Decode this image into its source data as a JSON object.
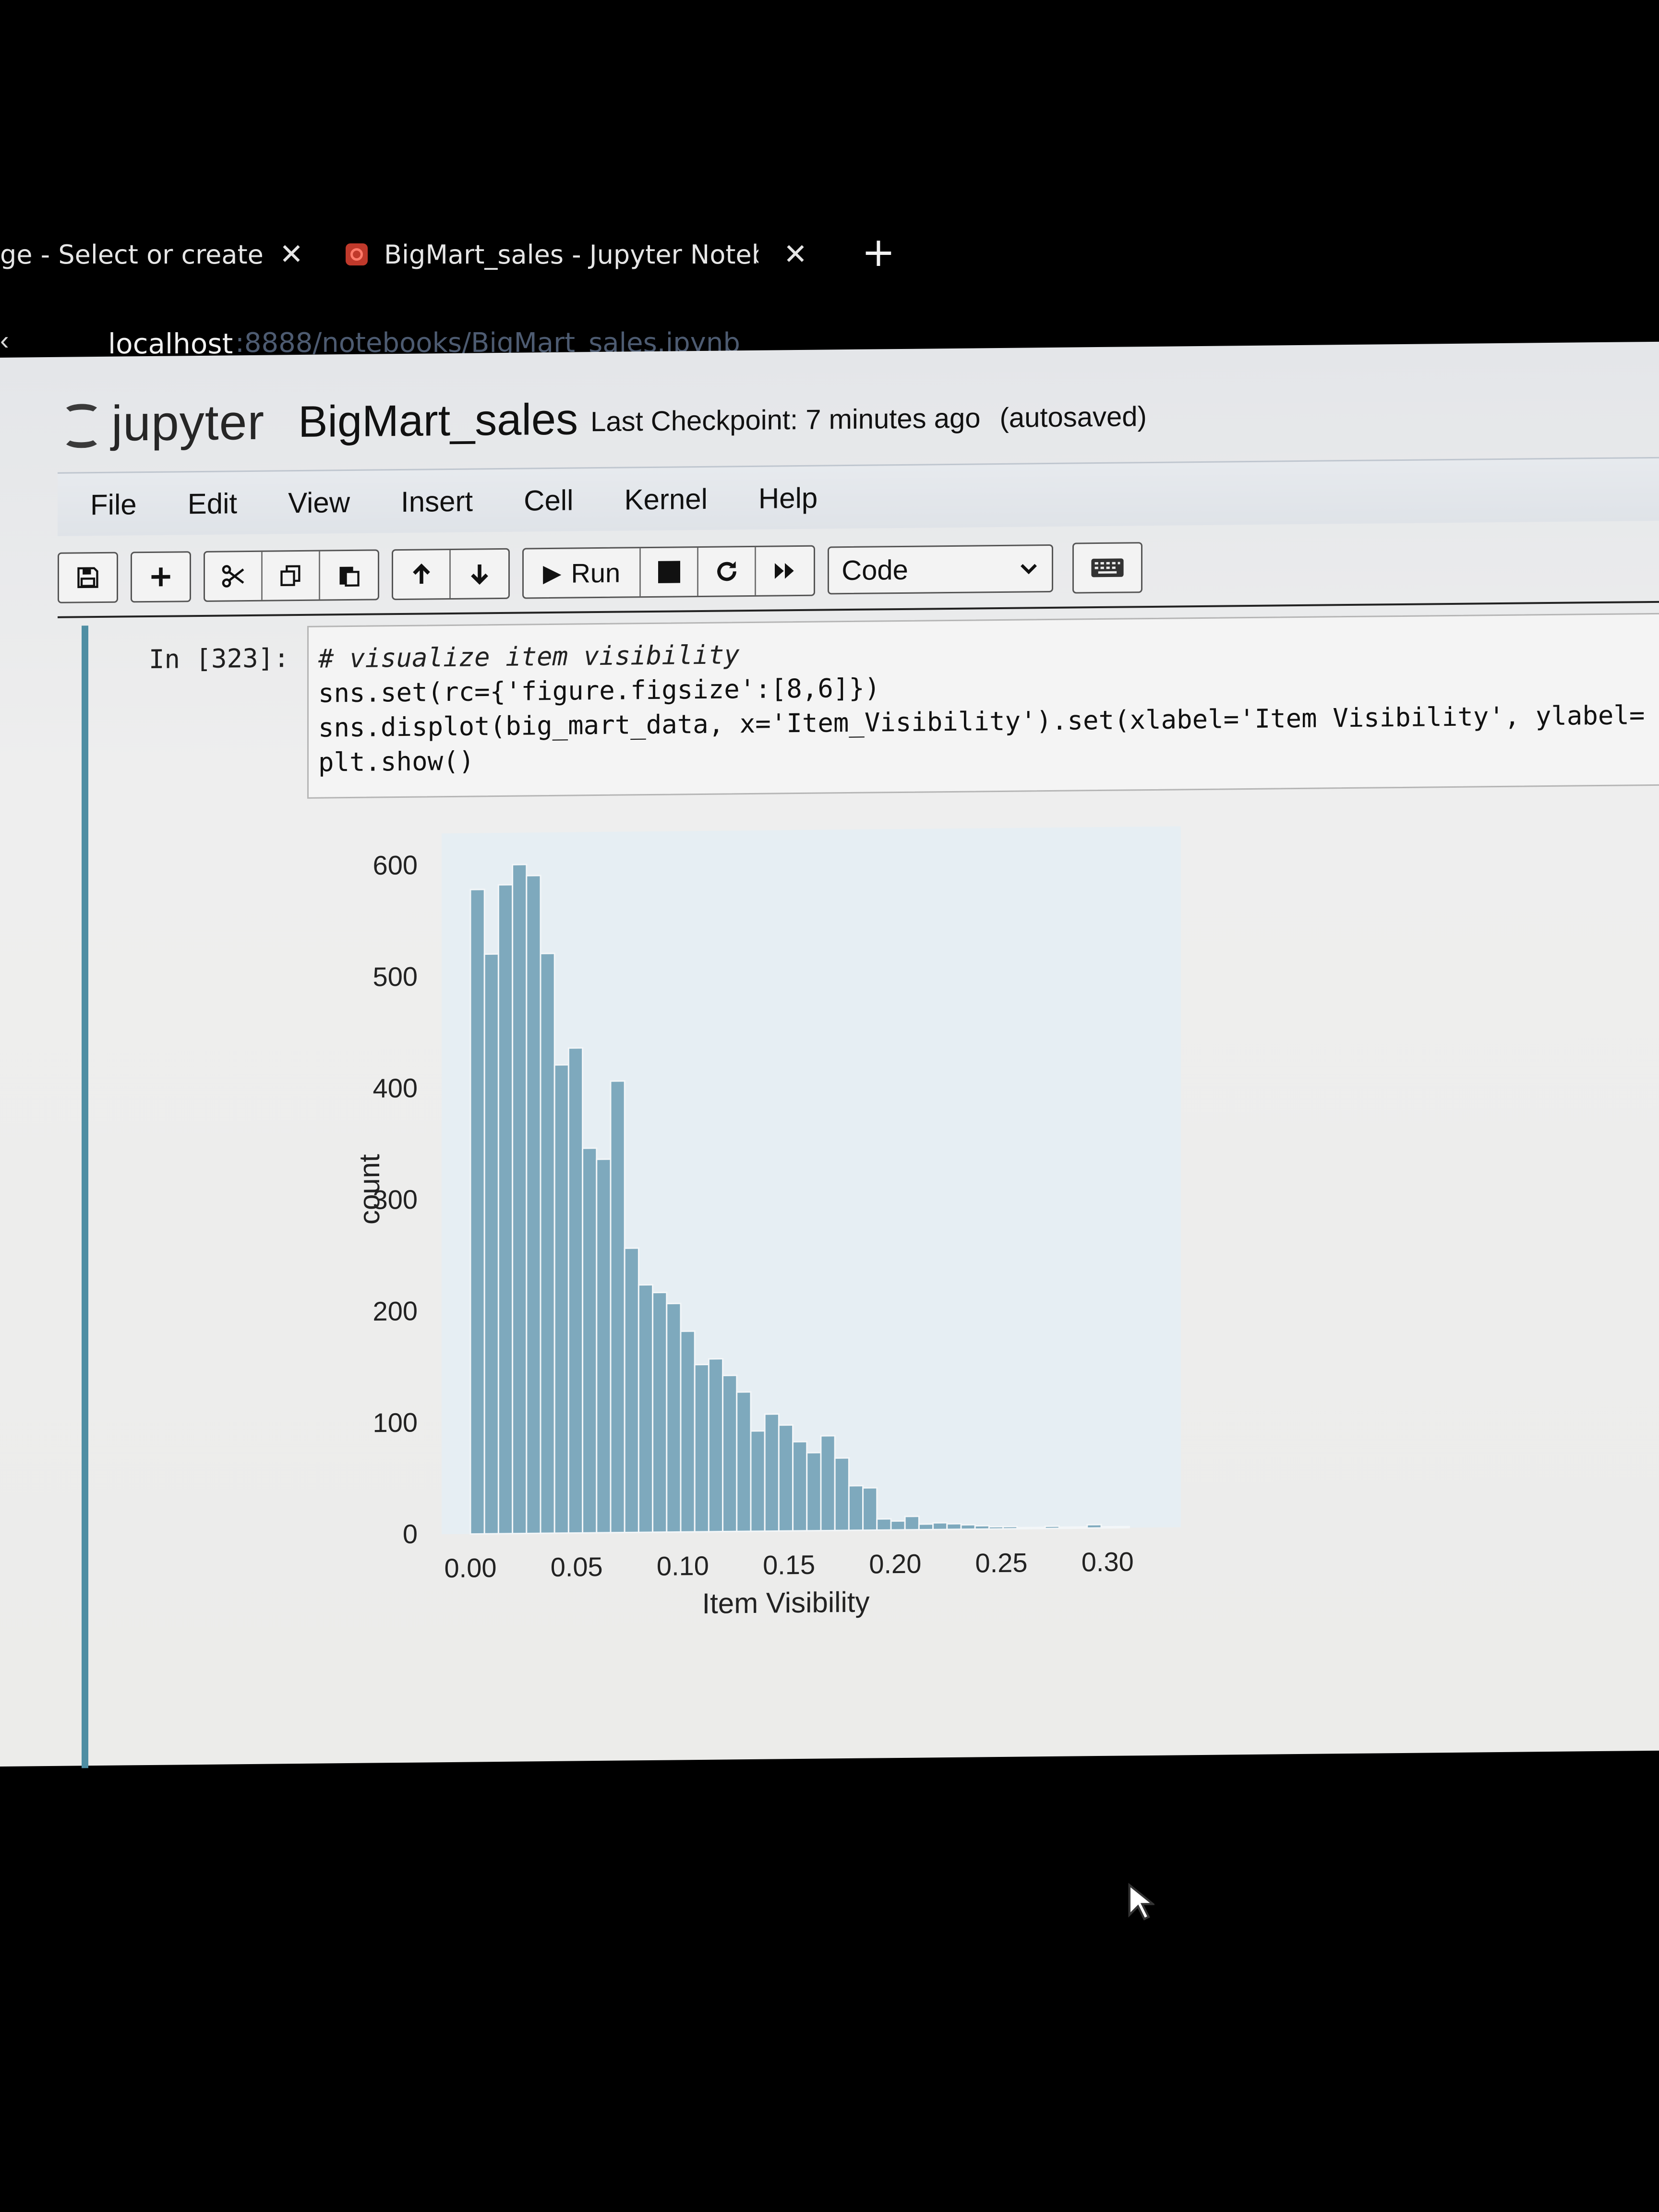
{
  "browser": {
    "tabs": [
      {
        "title": "ge - Select or create a",
        "close_glyph": "✕"
      },
      {
        "title": "BigMart_sales - Jupyter Notebo",
        "close_glyph": "✕"
      }
    ],
    "new_tab_glyph": "+",
    "address": {
      "host": "localhost",
      "path": ":8888/notebooks/BigMart_sales.ipynb"
    }
  },
  "notebook": {
    "logo_text": "jupyter",
    "name": "BigMart_sales",
    "checkpoint": "Last Checkpoint: 7 minutes ago",
    "autosaved": "(autosaved)",
    "menu": [
      "File",
      "Edit",
      "View",
      "Insert",
      "Cell",
      "Kernel",
      "Help"
    ],
    "toolbar": {
      "run_label": "Run",
      "cell_type": "Code",
      "icons": [
        "save-icon",
        "add-cell-icon",
        "cut-icon",
        "copy-icon",
        "paste-icon",
        "move-up-icon",
        "move-down-icon",
        "play-icon",
        "stop-icon",
        "restart-icon",
        "fast-forward-icon",
        "keyboard-icon"
      ]
    }
  },
  "cell": {
    "prompt": "In [323]:",
    "code": [
      "# visualize item visibility",
      "sns.set(rc={'figure.figsize':[8,6]})",
      "sns.displot(big_mart_data, x='Item_Visibility').set(xlabel='Item Visibility', ylabel=",
      "plt.show()"
    ]
  },
  "chart_data": {
    "type": "bar",
    "xlabel": "Item Visibility",
    "ylabel": "count",
    "xlim": [
      0.0,
      0.33
    ],
    "ylim": [
      0,
      620
    ],
    "xticks": [
      "0.00",
      "0.05",
      "0.10",
      "0.15",
      "0.20",
      "0.25",
      "0.30"
    ],
    "yticks": [
      "0",
      "100",
      "200",
      "300",
      "400",
      "500",
      "600"
    ],
    "bin_width": 0.0066,
    "x": [
      0.0,
      0.0066,
      0.0132,
      0.0198,
      0.0264,
      0.033,
      0.0396,
      0.0462,
      0.0528,
      0.0594,
      0.066,
      0.0726,
      0.0792,
      0.0858,
      0.0924,
      0.099,
      0.1056,
      0.1122,
      0.1188,
      0.1254,
      0.132,
      0.1386,
      0.1452,
      0.1518,
      0.1584,
      0.165,
      0.1716,
      0.1782,
      0.1848,
      0.1914,
      0.198,
      0.2046,
      0.2112,
      0.2178,
      0.2244,
      0.231,
      0.2376,
      0.2442,
      0.2508,
      0.2574,
      0.264,
      0.2706,
      0.2772,
      0.2838,
      0.2904,
      0.297,
      0.3036
    ],
    "values": [
      578,
      520,
      582,
      600,
      590,
      520,
      420,
      435,
      345,
      335,
      405,
      255,
      222,
      215,
      205,
      180,
      150,
      155,
      140,
      125,
      90,
      105,
      95,
      80,
      70,
      85,
      65,
      40,
      38,
      10,
      8,
      12,
      5,
      6,
      5,
      4,
      3,
      2,
      2,
      1,
      1,
      2,
      1,
      1,
      3,
      1,
      1
    ]
  },
  "colors": {
    "bar": "#7ea9bd",
    "cell_border": "#4f8ea3",
    "favicon": "#c0392b"
  }
}
